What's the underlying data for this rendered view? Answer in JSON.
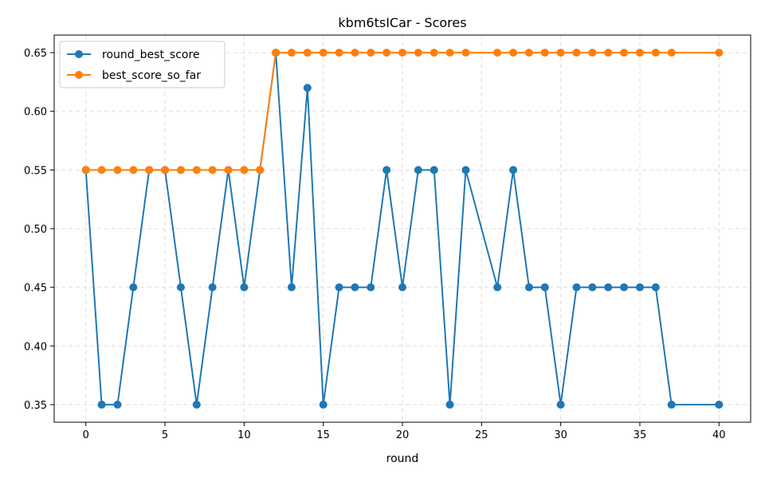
{
  "chart_data": {
    "type": "line",
    "title": "kbm6tsICar - Scores",
    "xlabel": "round",
    "ylabel": "",
    "xlim": [
      -2,
      42
    ],
    "ylim": [
      0.335,
      0.665
    ],
    "xticks": [
      0,
      5,
      10,
      15,
      20,
      25,
      30,
      35,
      40
    ],
    "yticks": [
      0.35,
      0.4,
      0.45,
      0.5,
      0.55,
      0.6,
      0.65
    ],
    "ytick_labels": [
      "0.35",
      "0.40",
      "0.45",
      "0.50",
      "0.55",
      "0.60",
      "0.65"
    ],
    "grid": true,
    "legend_position": "top-left",
    "x": [
      0,
      1,
      2,
      3,
      4,
      5,
      6,
      7,
      8,
      9,
      10,
      11,
      12,
      13,
      14,
      15,
      16,
      17,
      18,
      19,
      20,
      21,
      22,
      23,
      24,
      26,
      27,
      28,
      29,
      30,
      31,
      32,
      33,
      34,
      35,
      36,
      37,
      40
    ],
    "series": [
      {
        "name": "round_best_score",
        "color": "#1f77b4",
        "values": [
          0.55,
          0.35,
          0.35,
          0.45,
          0.55,
          0.55,
          0.45,
          0.35,
          0.45,
          0.55,
          0.45,
          0.55,
          0.65,
          0.45,
          0.62,
          0.35,
          0.45,
          0.45,
          0.45,
          0.55,
          0.45,
          0.55,
          0.55,
          0.35,
          0.55,
          0.45,
          0.55,
          0.45,
          0.45,
          0.35,
          0.45,
          0.45,
          0.45,
          0.45,
          0.45,
          0.45,
          0.35,
          0.35
        ]
      },
      {
        "name": "best_score_so_far",
        "color": "#ff7f0e",
        "values": [
          0.55,
          0.55,
          0.55,
          0.55,
          0.55,
          0.55,
          0.55,
          0.55,
          0.55,
          0.55,
          0.55,
          0.55,
          0.65,
          0.65,
          0.65,
          0.65,
          0.65,
          0.65,
          0.65,
          0.65,
          0.65,
          0.65,
          0.65,
          0.65,
          0.65,
          0.65,
          0.65,
          0.65,
          0.65,
          0.65,
          0.65,
          0.65,
          0.65,
          0.65,
          0.65,
          0.65,
          0.65,
          0.65
        ]
      }
    ]
  }
}
